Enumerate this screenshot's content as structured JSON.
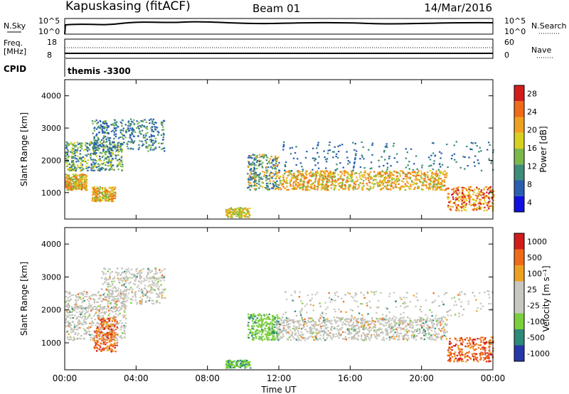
{
  "header": {
    "radar": "Kapuskasing (fitACF)",
    "beam": "Beam 01",
    "date": "14/Mar/2016"
  },
  "top_panels": {
    "nsky_label": "N.Sky",
    "nsky_ticks": [
      "10^5",
      "10^0"
    ],
    "nsearch_label": "N.Search",
    "nsearch_ticks": [
      "10^5",
      "10^0"
    ],
    "freq_label": "Freq.",
    "freq_unit": "[MHz]",
    "freq_ticks": [
      "18",
      "8"
    ],
    "nave_label": "Nave",
    "nave_ticks": [
      "60",
      "0"
    ],
    "cpid_label": "CPID",
    "cpid_value": "themis -3300"
  },
  "chart_data": [
    {
      "type": "heatmap",
      "name": "power",
      "ylabel": "Slant Range [km]",
      "yticks": [
        1000,
        2000,
        3000,
        4000
      ],
      "ylim": [
        180,
        4500
      ],
      "xlim": [
        0,
        24
      ],
      "xticks": [
        "00:00",
        "04:00",
        "08:00",
        "12:00",
        "16:00",
        "20:00",
        "00:00"
      ],
      "colorbar_label": "Power [dB]",
      "colorbar_ticks": [
        "28",
        "24",
        "20",
        "16",
        "12",
        "8",
        "4"
      ],
      "colorbar_colors": [
        "#1010e0",
        "#2a5fb0",
        "#3d8c7c",
        "#7ab84a",
        "#d8d020",
        "#f0a020",
        "#f06a18",
        "#d21c1c"
      ]
    },
    {
      "type": "heatmap",
      "name": "velocity",
      "ylabel": "Slant Range [km]",
      "yticks": [
        1000,
        2000,
        3000,
        4000
      ],
      "ylim": [
        180,
        4500
      ],
      "xlim": [
        0,
        24
      ],
      "xticks": [
        "00:00",
        "04:00",
        "08:00",
        "12:00",
        "16:00",
        "20:00",
        "00:00"
      ],
      "xlabel": "Time UT",
      "colorbar_label": "Velocity [m s⁻¹]",
      "colorbar_ticks": [
        "1000",
        "500",
        "100",
        "25",
        "-25",
        "-100",
        "-500",
        "-1000"
      ],
      "colorbar_colors": [
        "#2438a8",
        "#2e8a78",
        "#7ccf3c",
        "#c8c8c0",
        "#c8c8c0",
        "#f0a020",
        "#f06a18",
        "#d21c1c"
      ]
    }
  ]
}
